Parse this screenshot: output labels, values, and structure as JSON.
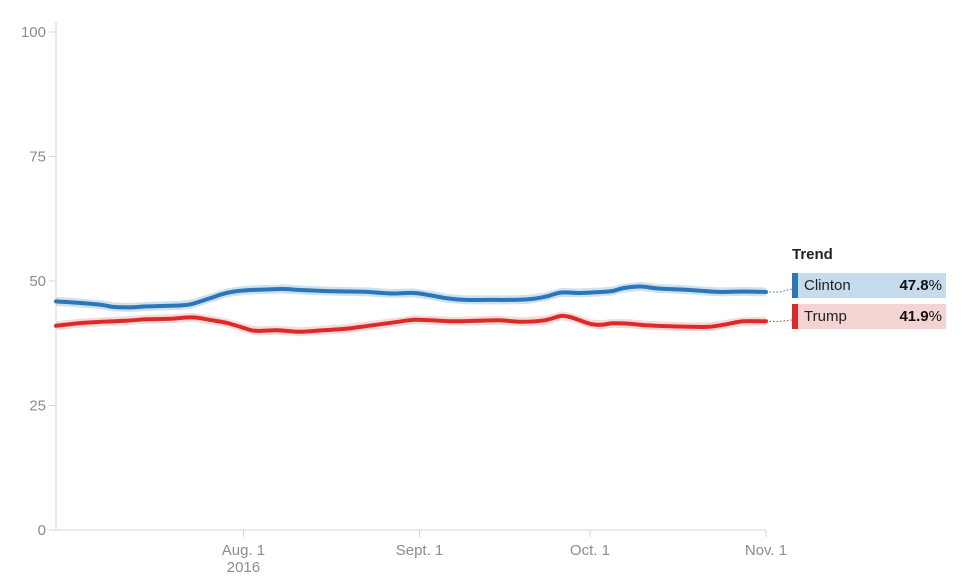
{
  "chart_data": {
    "type": "line",
    "title": "",
    "xlabel": "",
    "ylabel": "",
    "ylim": [
      0,
      100
    ],
    "yticks": [
      "100",
      "75",
      "50",
      "25",
      "0"
    ],
    "ytick_values": [
      100,
      75,
      50,
      25,
      0
    ],
    "xticks": [
      {
        "date": "2016-08-01",
        "label": "Aug. 1",
        "sublabel": "2016"
      },
      {
        "date": "2016-09-01",
        "label": "Sept. 1",
        "sublabel": ""
      },
      {
        "date": "2016-10-01",
        "label": "Oct. 1",
        "sublabel": ""
      },
      {
        "date": "2016-11-01",
        "label": "Nov. 1",
        "sublabel": ""
      }
    ],
    "xrange": [
      "2016-06-29",
      "2016-11-01"
    ],
    "legend_title": "Trend",
    "legend_placement": "right",
    "series": [
      {
        "name": "Clinton",
        "color": "#2a76b8",
        "band_color": "#c6dced",
        "final_value": "47.8",
        "unit": "%",
        "points": [
          [
            "2016-06-29",
            45.9
          ],
          [
            "2016-07-03",
            45.6
          ],
          [
            "2016-07-07",
            45.2
          ],
          [
            "2016-07-09",
            44.8
          ],
          [
            "2016-07-12",
            44.7
          ],
          [
            "2016-07-15",
            44.9
          ],
          [
            "2016-07-18",
            45.0
          ],
          [
            "2016-07-21",
            45.1
          ],
          [
            "2016-07-23",
            45.4
          ],
          [
            "2016-07-26",
            46.5
          ],
          [
            "2016-07-29",
            47.6
          ],
          [
            "2016-08-01",
            48.1
          ],
          [
            "2016-08-05",
            48.3
          ],
          [
            "2016-08-08",
            48.4
          ],
          [
            "2016-08-11",
            48.2
          ],
          [
            "2016-08-15",
            48.0
          ],
          [
            "2016-08-19",
            47.9
          ],
          [
            "2016-08-23",
            47.8
          ],
          [
            "2016-08-27",
            47.5
          ],
          [
            "2016-08-31",
            47.6
          ],
          [
            "2016-09-03",
            47.1
          ],
          [
            "2016-09-06",
            46.5
          ],
          [
            "2016-09-09",
            46.2
          ],
          [
            "2016-09-13",
            46.2
          ],
          [
            "2016-09-17",
            46.2
          ],
          [
            "2016-09-20",
            46.3
          ],
          [
            "2016-09-23",
            46.8
          ],
          [
            "2016-09-26",
            47.7
          ],
          [
            "2016-09-29",
            47.6
          ],
          [
            "2016-10-03",
            47.8
          ],
          [
            "2016-10-05",
            48.0
          ],
          [
            "2016-10-07",
            48.6
          ],
          [
            "2016-10-10",
            48.9
          ],
          [
            "2016-10-13",
            48.5
          ],
          [
            "2016-10-17",
            48.3
          ],
          [
            "2016-10-21",
            48.0
          ],
          [
            "2016-10-24",
            47.8
          ],
          [
            "2016-10-28",
            47.9
          ],
          [
            "2016-11-01",
            47.8
          ]
        ]
      },
      {
        "name": "Trump",
        "color": "#dc2a28",
        "band_color": "#f4d3d3",
        "final_value": "41.9",
        "unit": "%",
        "points": [
          [
            "2016-06-29",
            41.0
          ],
          [
            "2016-07-03",
            41.5
          ],
          [
            "2016-07-07",
            41.8
          ],
          [
            "2016-07-11",
            42.0
          ],
          [
            "2016-07-15",
            42.3
          ],
          [
            "2016-07-19",
            42.4
          ],
          [
            "2016-07-23",
            42.7
          ],
          [
            "2016-07-26",
            42.2
          ],
          [
            "2016-07-29",
            41.6
          ],
          [
            "2016-08-01",
            40.6
          ],
          [
            "2016-08-03",
            40.0
          ],
          [
            "2016-08-07",
            40.1
          ],
          [
            "2016-08-11",
            39.8
          ],
          [
            "2016-08-15",
            40.1
          ],
          [
            "2016-08-19",
            40.4
          ],
          [
            "2016-08-23",
            41.0
          ],
          [
            "2016-08-27",
            41.6
          ],
          [
            "2016-08-31",
            42.2
          ],
          [
            "2016-09-03",
            42.1
          ],
          [
            "2016-09-07",
            41.9
          ],
          [
            "2016-09-11",
            42.0
          ],
          [
            "2016-09-15",
            42.1
          ],
          [
            "2016-09-19",
            41.8
          ],
          [
            "2016-09-23",
            42.1
          ],
          [
            "2016-09-26",
            43.0
          ],
          [
            "2016-09-28",
            42.6
          ],
          [
            "2016-10-01",
            41.4
          ],
          [
            "2016-10-03",
            41.2
          ],
          [
            "2016-10-05",
            41.5
          ],
          [
            "2016-10-08",
            41.4
          ],
          [
            "2016-10-11",
            41.1
          ],
          [
            "2016-10-15",
            40.9
          ],
          [
            "2016-10-19",
            40.8
          ],
          [
            "2016-10-22",
            40.8
          ],
          [
            "2016-10-25",
            41.3
          ],
          [
            "2016-10-28",
            41.9
          ],
          [
            "2016-11-01",
            41.9
          ]
        ]
      }
    ]
  }
}
